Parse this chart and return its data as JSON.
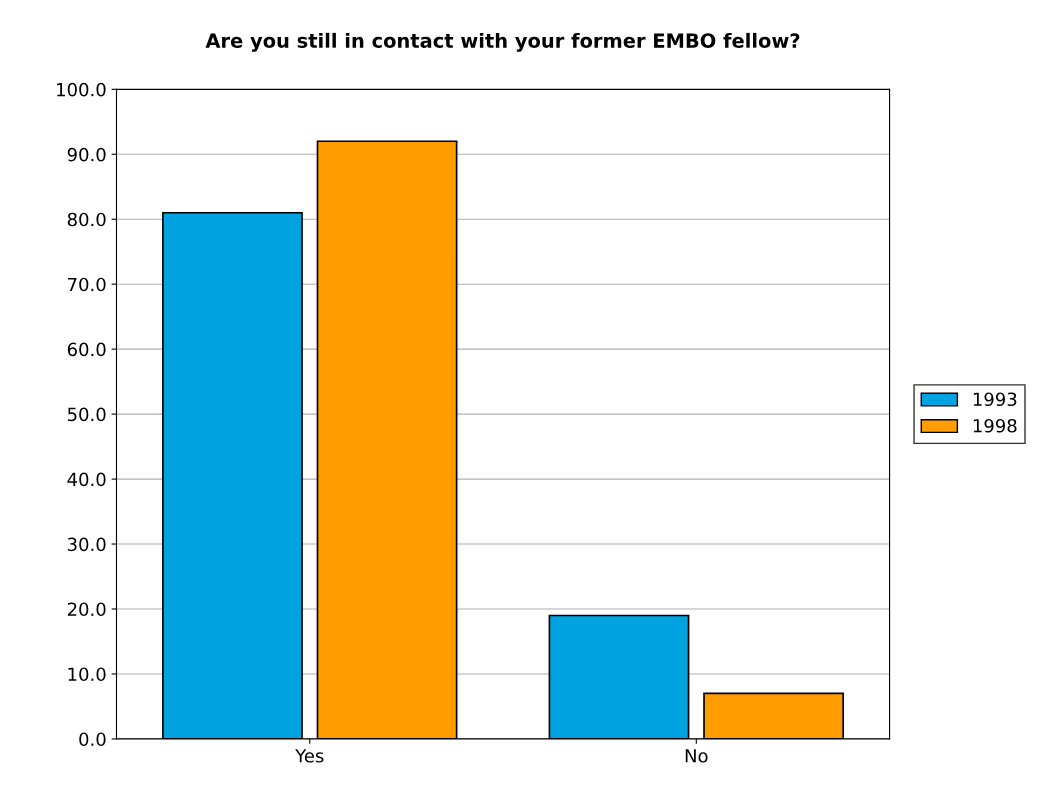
{
  "chart_data": {
    "type": "bar",
    "title": "Are you still in contact with your former EMBO fellow?",
    "categories": [
      "Yes",
      "No"
    ],
    "series": [
      {
        "name": "1993",
        "color": "#00a2e0",
        "values": [
          81,
          19
        ]
      },
      {
        "name": "1998",
        "color": "#ff9d00",
        "values": [
          92,
          7
        ]
      }
    ],
    "ylim": [
      0,
      100
    ],
    "yticks": [
      {
        "value": 0,
        "label": "0.0"
      },
      {
        "value": 10,
        "label": "10.0"
      },
      {
        "value": 20,
        "label": "20.0"
      },
      {
        "value": 30,
        "label": "30.0"
      },
      {
        "value": 40,
        "label": "40.0"
      },
      {
        "value": 50,
        "label": "50.0"
      },
      {
        "value": 60,
        "label": "60.0"
      },
      {
        "value": 70,
        "label": "70.0"
      },
      {
        "value": 80,
        "label": "80.0"
      },
      {
        "value": 90,
        "label": "90.0"
      },
      {
        "value": 100,
        "label": "100.0"
      }
    ],
    "grid": "y",
    "legend": "right"
  }
}
